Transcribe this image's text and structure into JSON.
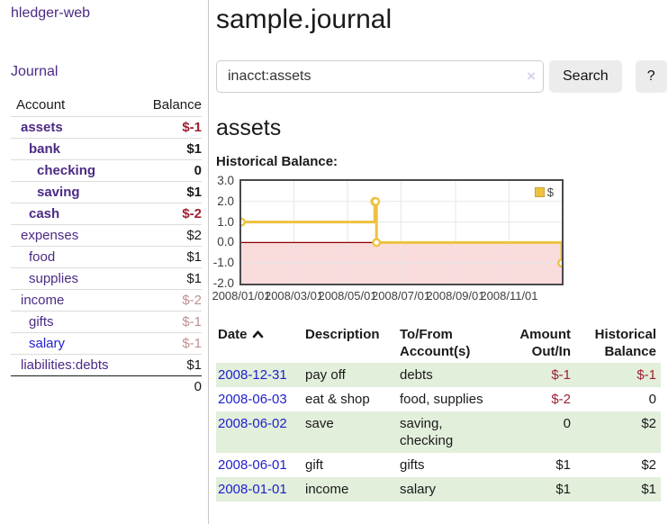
{
  "app": {
    "brand": "hledger-web"
  },
  "colors": {
    "link_purple": "#4c2a85",
    "link_blue": "#1e1ecf",
    "negative": "#9e1f30",
    "negative_muted": "#c28f8f",
    "row_stripe_green": "#e2efdb",
    "chart_line": "#edc240",
    "chart_negative_fill": "#f9dcdc",
    "chart_zero_line": "#8b0000",
    "plot_border": "#4a4a4d"
  },
  "sidebar": {
    "journal_link": "Journal",
    "accounts": {
      "header": {
        "account": "Account",
        "balance": "Balance"
      },
      "rows": [
        {
          "name": "assets",
          "balance": "$-1"
        },
        {
          "name": "bank",
          "balance": "$1"
        },
        {
          "name": "checking",
          "balance": "0"
        },
        {
          "name": "saving",
          "balance": "$1"
        },
        {
          "name": "cash",
          "balance": "$-2"
        },
        {
          "name": "expenses",
          "balance": "$2"
        },
        {
          "name": "food",
          "balance": "$1"
        },
        {
          "name": "supplies",
          "balance": "$1"
        },
        {
          "name": "income",
          "balance": "$-2"
        },
        {
          "name": "gifts",
          "balance": "$-1"
        },
        {
          "name": "salary",
          "balance": "$-1"
        },
        {
          "name": "liabilities:debts",
          "balance": "$1"
        }
      ],
      "total": "0"
    }
  },
  "main": {
    "title": "sample.journal",
    "search": {
      "query_value": "inacct:assets",
      "clear_icon": "×",
      "search_button": "Search",
      "help_button": "?"
    },
    "account_heading": "assets",
    "chart_title": "Historical Balance:"
  },
  "chart_data": {
    "type": "line",
    "step": true,
    "title": "Historical Balance",
    "series": [
      {
        "name": "$",
        "color": "#edc240",
        "points": [
          [
            "2008-01-01",
            1
          ],
          [
            "2008-06-01",
            2
          ],
          [
            "2008-06-02",
            2
          ],
          [
            "2008-06-03",
            0
          ],
          [
            "2008-12-31",
            -1
          ]
        ]
      }
    ],
    "x_range": [
      "2008-01-01",
      "2008-12-31"
    ],
    "ylim": [
      -2,
      3
    ],
    "y_ticks": [
      3,
      2,
      1,
      0,
      -1,
      -2
    ],
    "x_ticks": [
      {
        "date": "2008-01-01",
        "label": "2008/01/01"
      },
      {
        "date": "2008-03-01",
        "label": "2008/03/01"
      },
      {
        "date": "2008-05-01",
        "label": "2008/05/01"
      },
      {
        "date": "2008-07-01",
        "label": "2008/07/01"
      },
      {
        "date": "2008-09-01",
        "label": "2008/09/01"
      },
      {
        "date": "2008-11-01",
        "label": "2008/11/01"
      }
    ],
    "grid": true,
    "legend_position": "top-right",
    "negative_region_fill": "#f9dcdc",
    "zero_line_color": "#8b0000"
  },
  "register": {
    "header": {
      "date": "Date",
      "description": "Description",
      "account": "To/From Account(s)",
      "amount": "Amount Out/In",
      "balance": "Historical Balance"
    },
    "rows": [
      {
        "date": "2008-12-31",
        "description": "pay off",
        "accounts": "debts",
        "amount": "$-1",
        "balance": "$-1"
      },
      {
        "date": "2008-06-03",
        "description": "eat & shop",
        "accounts": "food, supplies",
        "amount": "$-2",
        "balance": "0"
      },
      {
        "date": "2008-06-02",
        "description": "save",
        "accounts": "saving, checking",
        "amount": "0",
        "balance": "$2"
      },
      {
        "date": "2008-06-01",
        "description": "gift",
        "accounts": "gifts",
        "amount": "$1",
        "balance": "$2"
      },
      {
        "date": "2008-01-01",
        "description": "income",
        "accounts": "salary",
        "amount": "$1",
        "balance": "$1"
      }
    ]
  }
}
